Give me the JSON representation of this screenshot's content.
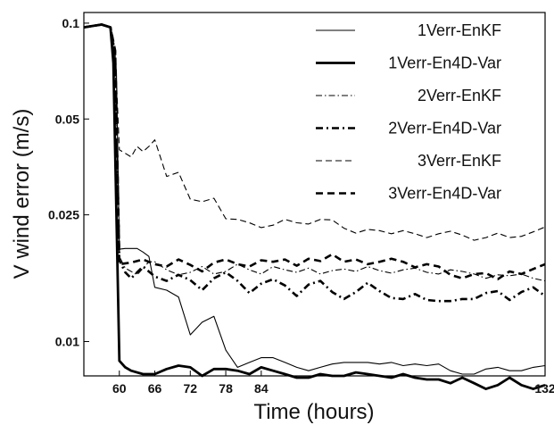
{
  "chart_data": {
    "type": "line",
    "title": "",
    "xlabel": "Time (hours)",
    "ylabel": "V wind error (m/s)",
    "xlim": [
      54,
      132
    ],
    "ylim": [
      0.0078,
      0.108
    ],
    "yscale": "log",
    "xticks": [
      60,
      66,
      72,
      78,
      84,
      132
    ],
    "yticks": [
      {
        "value": 0.01,
        "label": "0.01"
      },
      {
        "value": 0.025,
        "label": "0.025"
      },
      {
        "value": 0.05,
        "label": "0.05"
      },
      {
        "value": 0.1,
        "label": "0.1"
      }
    ],
    "grid": false,
    "legend_position": "top-right",
    "series": [
      {
        "name": "1Verr-EnKF",
        "style": "solid-thin",
        "x": [
          54,
          57,
          58.5,
          59.5,
          60,
          61,
          63,
          64,
          65,
          66,
          68,
          70,
          72,
          74,
          76,
          78,
          80,
          82,
          84,
          86,
          88,
          90,
          92,
          94,
          96,
          98,
          100,
          102,
          104,
          106,
          108,
          110,
          112,
          114,
          116,
          118,
          120,
          122,
          124,
          126,
          128,
          130,
          132
        ],
        "y": [
          0.097,
          0.099,
          0.097,
          0.07,
          0.0195,
          0.0196,
          0.0196,
          0.0191,
          0.0185,
          0.0148,
          0.0145,
          0.0138,
          0.0105,
          0.0115,
          0.012,
          0.0094,
          0.0083,
          0.0086,
          0.0089,
          0.0089,
          0.0086,
          0.0083,
          0.0081,
          0.0083,
          0.0085,
          0.0086,
          0.0086,
          0.0086,
          0.0085,
          0.0086,
          0.0084,
          0.0085,
          0.0084,
          0.0085,
          0.0081,
          0.0079,
          0.0079,
          0.0082,
          0.0083,
          0.0081,
          0.0081,
          0.0083,
          0.0084
        ]
      },
      {
        "name": "1Verr-En4D-Var",
        "style": "solid-thick",
        "x": [
          54,
          57,
          58.5,
          59,
          60,
          61,
          62,
          64,
          66,
          68,
          70,
          72,
          74,
          76,
          78,
          80,
          82,
          84,
          86,
          88,
          90,
          92,
          94,
          96,
          98,
          100,
          102,
          104,
          106,
          108,
          110,
          112,
          114,
          116,
          118,
          120,
          122,
          124,
          126,
          128,
          130,
          132
        ],
        "y": [
          0.097,
          0.099,
          0.097,
          0.075,
          0.0087,
          0.0083,
          0.0081,
          0.0079,
          0.0079,
          0.0082,
          0.0084,
          0.0083,
          0.0078,
          0.0082,
          0.0082,
          0.0081,
          0.0079,
          0.0083,
          0.0081,
          0.0079,
          0.0077,
          0.0077,
          0.0079,
          0.0078,
          0.0078,
          0.008,
          0.0079,
          0.0078,
          0.0077,
          0.0079,
          0.0077,
          0.0076,
          0.0076,
          0.0074,
          0.0077,
          0.0074,
          0.0071,
          0.0073,
          0.0077,
          0.0073,
          0.0071,
          0.0073
        ]
      },
      {
        "name": "2Verr-EnKF",
        "style": "dash-dot-thin",
        "x": [
          54,
          57,
          58.5,
          59.3,
          60,
          61,
          63,
          65,
          66,
          68,
          70,
          72,
          74,
          76,
          78,
          80,
          82,
          84,
          86,
          88,
          90,
          92,
          94,
          96,
          98,
          100,
          102,
          104,
          106,
          108,
          110,
          112,
          114,
          116,
          118,
          120,
          122,
          124,
          126,
          128,
          130,
          132
        ],
        "y": [
          0.097,
          0.099,
          0.097,
          0.08,
          0.0185,
          0.017,
          0.0162,
          0.0178,
          0.0178,
          0.0168,
          0.0162,
          0.0165,
          0.0172,
          0.0163,
          0.0166,
          0.0175,
          0.0168,
          0.0163,
          0.0172,
          0.0168,
          0.0165,
          0.017,
          0.0163,
          0.0167,
          0.0169,
          0.0166,
          0.0172,
          0.0167,
          0.0164,
          0.0168,
          0.017,
          0.0165,
          0.0163,
          0.0168,
          0.0166,
          0.0163,
          0.0158,
          0.0162,
          0.0161,
          0.0163,
          0.0158,
          0.0155
        ]
      },
      {
        "name": "2Verr-En4D-Var",
        "style": "dash-dot-thick",
        "x": [
          54,
          57,
          58.5,
          59.3,
          60,
          61,
          62,
          63,
          64,
          66,
          68,
          70,
          72,
          74,
          76,
          78,
          80,
          82,
          84,
          86,
          88,
          90,
          92,
          94,
          96,
          98,
          100,
          102,
          104,
          106,
          108,
          110,
          112,
          114,
          116,
          118,
          120,
          122,
          124,
          126,
          128,
          130,
          132
        ],
        "y": [
          0.097,
          0.099,
          0.097,
          0.08,
          0.018,
          0.0165,
          0.0158,
          0.0165,
          0.0172,
          0.016,
          0.0155,
          0.0162,
          0.0156,
          0.0145,
          0.0158,
          0.0165,
          0.0155,
          0.0142,
          0.0152,
          0.0157,
          0.015,
          0.0139,
          0.0151,
          0.0155,
          0.0143,
          0.0136,
          0.0143,
          0.0153,
          0.0144,
          0.0137,
          0.0136,
          0.0141,
          0.0135,
          0.0134,
          0.0134,
          0.0136,
          0.0136,
          0.0142,
          0.0144,
          0.0135,
          0.0143,
          0.0148,
          0.0139
        ]
      },
      {
        "name": "3Verr-EnKF",
        "style": "dashed-thin",
        "x": [
          54,
          57,
          58.5,
          59.3,
          60,
          61,
          62,
          63,
          64,
          65,
          66,
          68,
          70,
          72,
          74,
          76,
          78,
          80,
          82,
          84,
          86,
          88,
          90,
          92,
          94,
          96,
          98,
          100,
          102,
          104,
          106,
          108,
          110,
          112,
          114,
          116,
          118,
          120,
          122,
          124,
          126,
          128,
          130,
          132
        ],
        "y": [
          0.097,
          0.099,
          0.097,
          0.082,
          0.04,
          0.039,
          0.038,
          0.041,
          0.0395,
          0.041,
          0.043,
          0.033,
          0.034,
          0.028,
          0.0275,
          0.0282,
          0.0243,
          0.0242,
          0.0236,
          0.0228,
          0.0232,
          0.0242,
          0.0236,
          0.0234,
          0.0242,
          0.0241,
          0.0227,
          0.0219,
          0.0225,
          0.0223,
          0.0218,
          0.0223,
          0.0218,
          0.0212,
          0.0218,
          0.0222,
          0.0216,
          0.0208,
          0.0212,
          0.0219,
          0.0212,
          0.0214,
          0.0221,
          0.0229
        ]
      },
      {
        "name": "3Verr-En4D-Var",
        "style": "dashed-thick",
        "x": [
          54,
          57,
          58.5,
          59.3,
          60,
          62,
          64,
          66,
          68,
          70,
          72,
          74,
          76,
          78,
          80,
          82,
          84,
          86,
          88,
          90,
          92,
          94,
          96,
          98,
          100,
          102,
          104,
          106,
          108,
          110,
          112,
          114,
          116,
          118,
          120,
          122,
          124,
          126,
          128,
          130,
          132
        ],
        "y": [
          0.097,
          0.099,
          0.097,
          0.082,
          0.0175,
          0.0177,
          0.0181,
          0.0175,
          0.0172,
          0.0181,
          0.0174,
          0.0166,
          0.0177,
          0.0181,
          0.0175,
          0.0172,
          0.018,
          0.0178,
          0.0181,
          0.0173,
          0.0182,
          0.0179,
          0.0188,
          0.0178,
          0.0181,
          0.0175,
          0.0178,
          0.0182,
          0.0178,
          0.0171,
          0.0175,
          0.0172,
          0.0162,
          0.0158,
          0.0163,
          0.0164,
          0.0157,
          0.0166,
          0.0163,
          0.0169,
          0.0175
        ]
      }
    ]
  }
}
